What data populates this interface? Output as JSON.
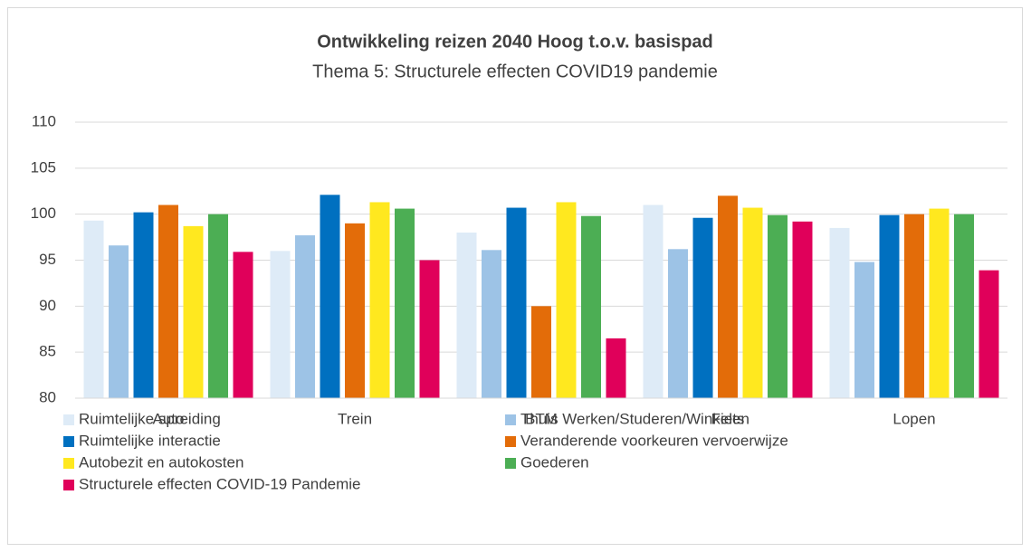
{
  "chart_data": {
    "type": "bar",
    "title": "Ontwikkeling reizen 2040 Hoog t.o.v. basispad",
    "subtitle": "Thema 5: Structurele effecten COVID19 pandemie",
    "categories": [
      "Auto",
      "Trein",
      "BTM",
      "Fiets",
      "Lopen"
    ],
    "series": [
      {
        "name": "Ruimtelijke spreiding",
        "color": "#deebf7",
        "values": [
          99.3,
          96,
          98,
          101,
          98.5
        ]
      },
      {
        "name": "Thuis Werken/Studeren/Winkelen",
        "color": "#9dc3e6",
        "values": [
          96.6,
          97.7,
          96.1,
          96.2,
          94.8
        ]
      },
      {
        "name": "Ruimtelijke interactie",
        "color": "#0070c0",
        "values": [
          100.2,
          102.1,
          100.7,
          99.6,
          99.9
        ]
      },
      {
        "name": "Veranderende voorkeuren vervoerwijze",
        "color": "#e36c09",
        "values": [
          101,
          99,
          90,
          102,
          100
        ]
      },
      {
        "name": "Autobezit en autokosten",
        "color": "#ffe81f",
        "values": [
          98.7,
          101.3,
          101.3,
          100.7,
          100.6
        ]
      },
      {
        "name": "Goederen",
        "color": "#4cae54",
        "values": [
          100,
          100.6,
          99.8,
          99.9,
          100
        ]
      },
      {
        "name": "Structurele effecten COVID-19 Pandemie",
        "color": "#e0005a",
        "values": [
          95.9,
          95,
          86.5,
          99.2,
          93.9
        ]
      }
    ],
    "ylim": [
      80,
      110
    ],
    "yticks": [
      80,
      85,
      90,
      95,
      100,
      105,
      110
    ],
    "grid": true
  }
}
